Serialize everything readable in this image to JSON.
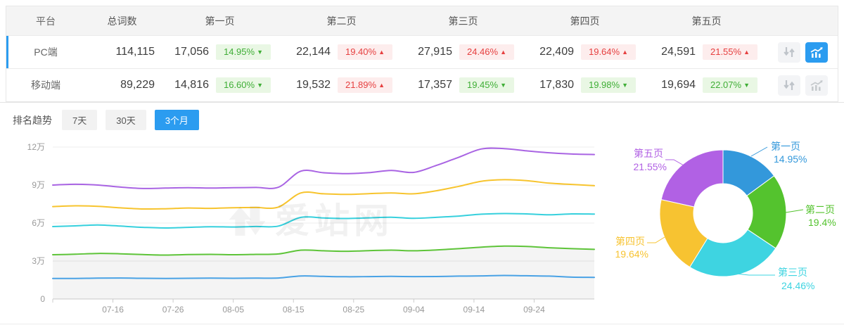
{
  "table": {
    "columns": [
      "平台",
      "总词数",
      "第一页",
      "第二页",
      "第三页",
      "第四页",
      "第五页"
    ],
    "rows": [
      {
        "platform": "PC端",
        "total": "114,115",
        "selected": true,
        "chart_active": true,
        "pages": [
          {
            "count": "17,056",
            "pct": "14.95%",
            "dir": "down"
          },
          {
            "count": "22,144",
            "pct": "19.40%",
            "dir": "up"
          },
          {
            "count": "27,915",
            "pct": "24.46%",
            "dir": "up"
          },
          {
            "count": "22,409",
            "pct": "19.64%",
            "dir": "up"
          },
          {
            "count": "24,591",
            "pct": "21.55%",
            "dir": "up"
          }
        ]
      },
      {
        "platform": "移动端",
        "total": "89,229",
        "selected": false,
        "chart_active": false,
        "pages": [
          {
            "count": "14,816",
            "pct": "16.60%",
            "dir": "down"
          },
          {
            "count": "19,532",
            "pct": "21.89%",
            "dir": "up"
          },
          {
            "count": "17,357",
            "pct": "19.45%",
            "dir": "down"
          },
          {
            "count": "17,830",
            "pct": "19.98%",
            "dir": "down"
          },
          {
            "count": "19,694",
            "pct": "22.07%",
            "dir": "down"
          }
        ]
      }
    ]
  },
  "trend": {
    "label": "排名趋势",
    "tabs": [
      {
        "label": "7天",
        "active": false
      },
      {
        "label": "30天",
        "active": false
      },
      {
        "label": "3个月",
        "active": true
      }
    ]
  },
  "watermark_text": "爱站网",
  "colors": {
    "accent": "#2b9cf0",
    "up_red": "#e64040",
    "down_green": "#3fae36"
  },
  "chart_data": [
    {
      "type": "line",
      "title": "排名趋势 3个月 (PC端, 累计词数)",
      "unit": "万",
      "ylim": [
        0,
        12
      ],
      "y_tick_values": [
        0,
        3,
        6,
        9,
        12
      ],
      "y_tick_labels": [
        "0",
        "3万",
        "6万",
        "9万",
        "12万"
      ],
      "x_ticks": [
        "07-16",
        "07-26",
        "08-05",
        "08-15",
        "08-25",
        "09-04",
        "09-14",
        "09-24"
      ],
      "x_range_days": 90,
      "first_tick_day": 10,
      "tick_interval_days": 10,
      "grid": true,
      "legend": "none",
      "series": [
        {
          "name": "第一页",
          "color": "#49a2e5",
          "area": false,
          "values": [
            1.62,
            1.63,
            1.65,
            1.66,
            1.64,
            1.63,
            1.64,
            1.65,
            1.64,
            1.65,
            1.66,
            1.82,
            1.79,
            1.76,
            1.77,
            1.79,
            1.77,
            1.78,
            1.81,
            1.83,
            1.86,
            1.84,
            1.81,
            1.73,
            1.71
          ]
        },
        {
          "name": "第二页",
          "color": "#5ec439",
          "area": true,
          "values": [
            3.5,
            3.54,
            3.6,
            3.57,
            3.51,
            3.47,
            3.51,
            3.53,
            3.5,
            3.53,
            3.56,
            3.86,
            3.81,
            3.77,
            3.82,
            3.86,
            3.81,
            3.88,
            3.98,
            4.1,
            4.18,
            4.15,
            4.05,
            3.98,
            3.92
          ]
        },
        {
          "name": "第三页",
          "color": "#36d0dd",
          "area": false,
          "values": [
            5.72,
            5.78,
            5.85,
            5.76,
            5.66,
            5.61,
            5.66,
            5.71,
            5.69,
            5.73,
            5.76,
            6.45,
            6.4,
            6.36,
            6.41,
            6.46,
            6.37,
            6.45,
            6.55,
            6.7,
            6.75,
            6.72,
            6.65,
            6.72,
            6.71
          ]
        },
        {
          "name": "第四页",
          "color": "#f7c42e",
          "area": false,
          "values": [
            7.3,
            7.36,
            7.32,
            7.2,
            7.11,
            7.13,
            7.19,
            7.16,
            7.21,
            7.23,
            7.26,
            8.38,
            8.31,
            8.26,
            8.32,
            8.38,
            8.31,
            8.55,
            8.9,
            9.3,
            9.42,
            9.35,
            9.15,
            9.05,
            8.95
          ]
        },
        {
          "name": "第五页",
          "color": "#a964e3",
          "area": false,
          "values": [
            9.0,
            9.06,
            9.0,
            8.84,
            8.73,
            8.76,
            8.79,
            8.76,
            8.79,
            8.81,
            8.83,
            10.1,
            9.97,
            9.9,
            9.98,
            10.15,
            10.0,
            10.55,
            11.2,
            11.85,
            11.88,
            11.7,
            11.55,
            11.45,
            11.41
          ]
        }
      ]
    },
    {
      "type": "pie",
      "donut": true,
      "labels": [
        "第一页",
        "第二页",
        "第三页",
        "第四页",
        "第五页"
      ],
      "values": [
        14.95,
        19.4,
        24.46,
        19.64,
        21.55
      ],
      "value_labels": [
        "14.95%",
        "19.4%",
        "24.46%",
        "19.64%",
        "21.55%"
      ],
      "colors": [
        "#3398db",
        "#54c32e",
        "#3ed4e1",
        "#f7c331",
        "#b161e4"
      ],
      "legend": "outside-labels"
    }
  ]
}
